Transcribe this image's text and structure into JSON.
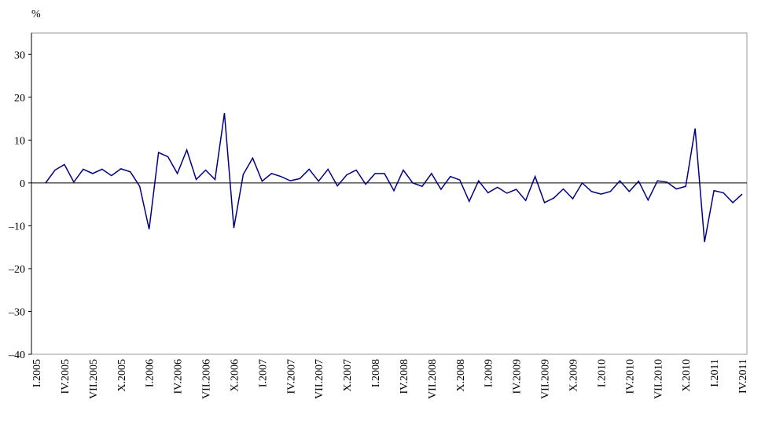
{
  "chart_data": {
    "type": "line",
    "y_label": "%",
    "categories": [
      "I.2005",
      null,
      null,
      "IV.2005",
      null,
      null,
      "VII.2005",
      null,
      null,
      "X.2005",
      null,
      null,
      "I.2006",
      null,
      null,
      "IV.2006",
      null,
      null,
      "VII.2006",
      null,
      null,
      "X.2006",
      null,
      null,
      "I.2007",
      null,
      null,
      "IV.2007",
      null,
      null,
      "VII.2007",
      null,
      null,
      "X.2007",
      null,
      null,
      "I.2008",
      null,
      null,
      "IV.2008",
      null,
      null,
      "VII.2008",
      null,
      null,
      "X.2008",
      null,
      null,
      "I.2009",
      null,
      null,
      "IV.2009",
      null,
      null,
      "VII.2009",
      null,
      null,
      "X.2009",
      null,
      null,
      "I.2010",
      null,
      null,
      "IV.2010",
      null,
      null,
      "VII.2010",
      null,
      null,
      "X.2010",
      null,
      null,
      "I.2011",
      null,
      null,
      "IV.2011"
    ],
    "series": [
      {
        "color": "#000080",
        "values": [
          null,
          0,
          3,
          4.3,
          0.2,
          3.2,
          2.2,
          3.2,
          1.7,
          3.3,
          2.6,
          -0.8,
          -10.8,
          7.1,
          6.1,
          2.2,
          7.7,
          0.8,
          3,
          0.8,
          16.3,
          -10.5,
          2,
          5.8,
          0.4,
          2.2,
          1.5,
          0.5,
          1,
          3.2,
          0.4,
          3.2,
          -0.7,
          1.9,
          3,
          -0.3,
          2.2,
          2.2,
          -1.8,
          3,
          0,
          -0.8,
          2.2,
          -1.5,
          1.5,
          0.7,
          -4.3,
          0.5,
          -2.3,
          -1,
          -2.4,
          -1.5,
          -4.1,
          1.5,
          -4.6,
          -3.5,
          -1.4,
          -3.7,
          0,
          -2,
          -2.6,
          -2,
          0.5,
          -2,
          0.4,
          -4,
          0.5,
          0.2,
          -1.4,
          -0.8,
          12.7,
          -13.8,
          -1.8,
          -2.3,
          -4.6,
          -2.6
        ]
      }
    ],
    "ylim": [
      -40,
      35
    ],
    "yticks": [
      {
        "value": -40,
        "label": "–40"
      },
      {
        "value": -30,
        "label": "–30"
      },
      {
        "value": -20,
        "label": "–20"
      },
      {
        "value": -10,
        "label": "–10"
      },
      0,
      10,
      20,
      30
    ],
    "grid": false
  }
}
